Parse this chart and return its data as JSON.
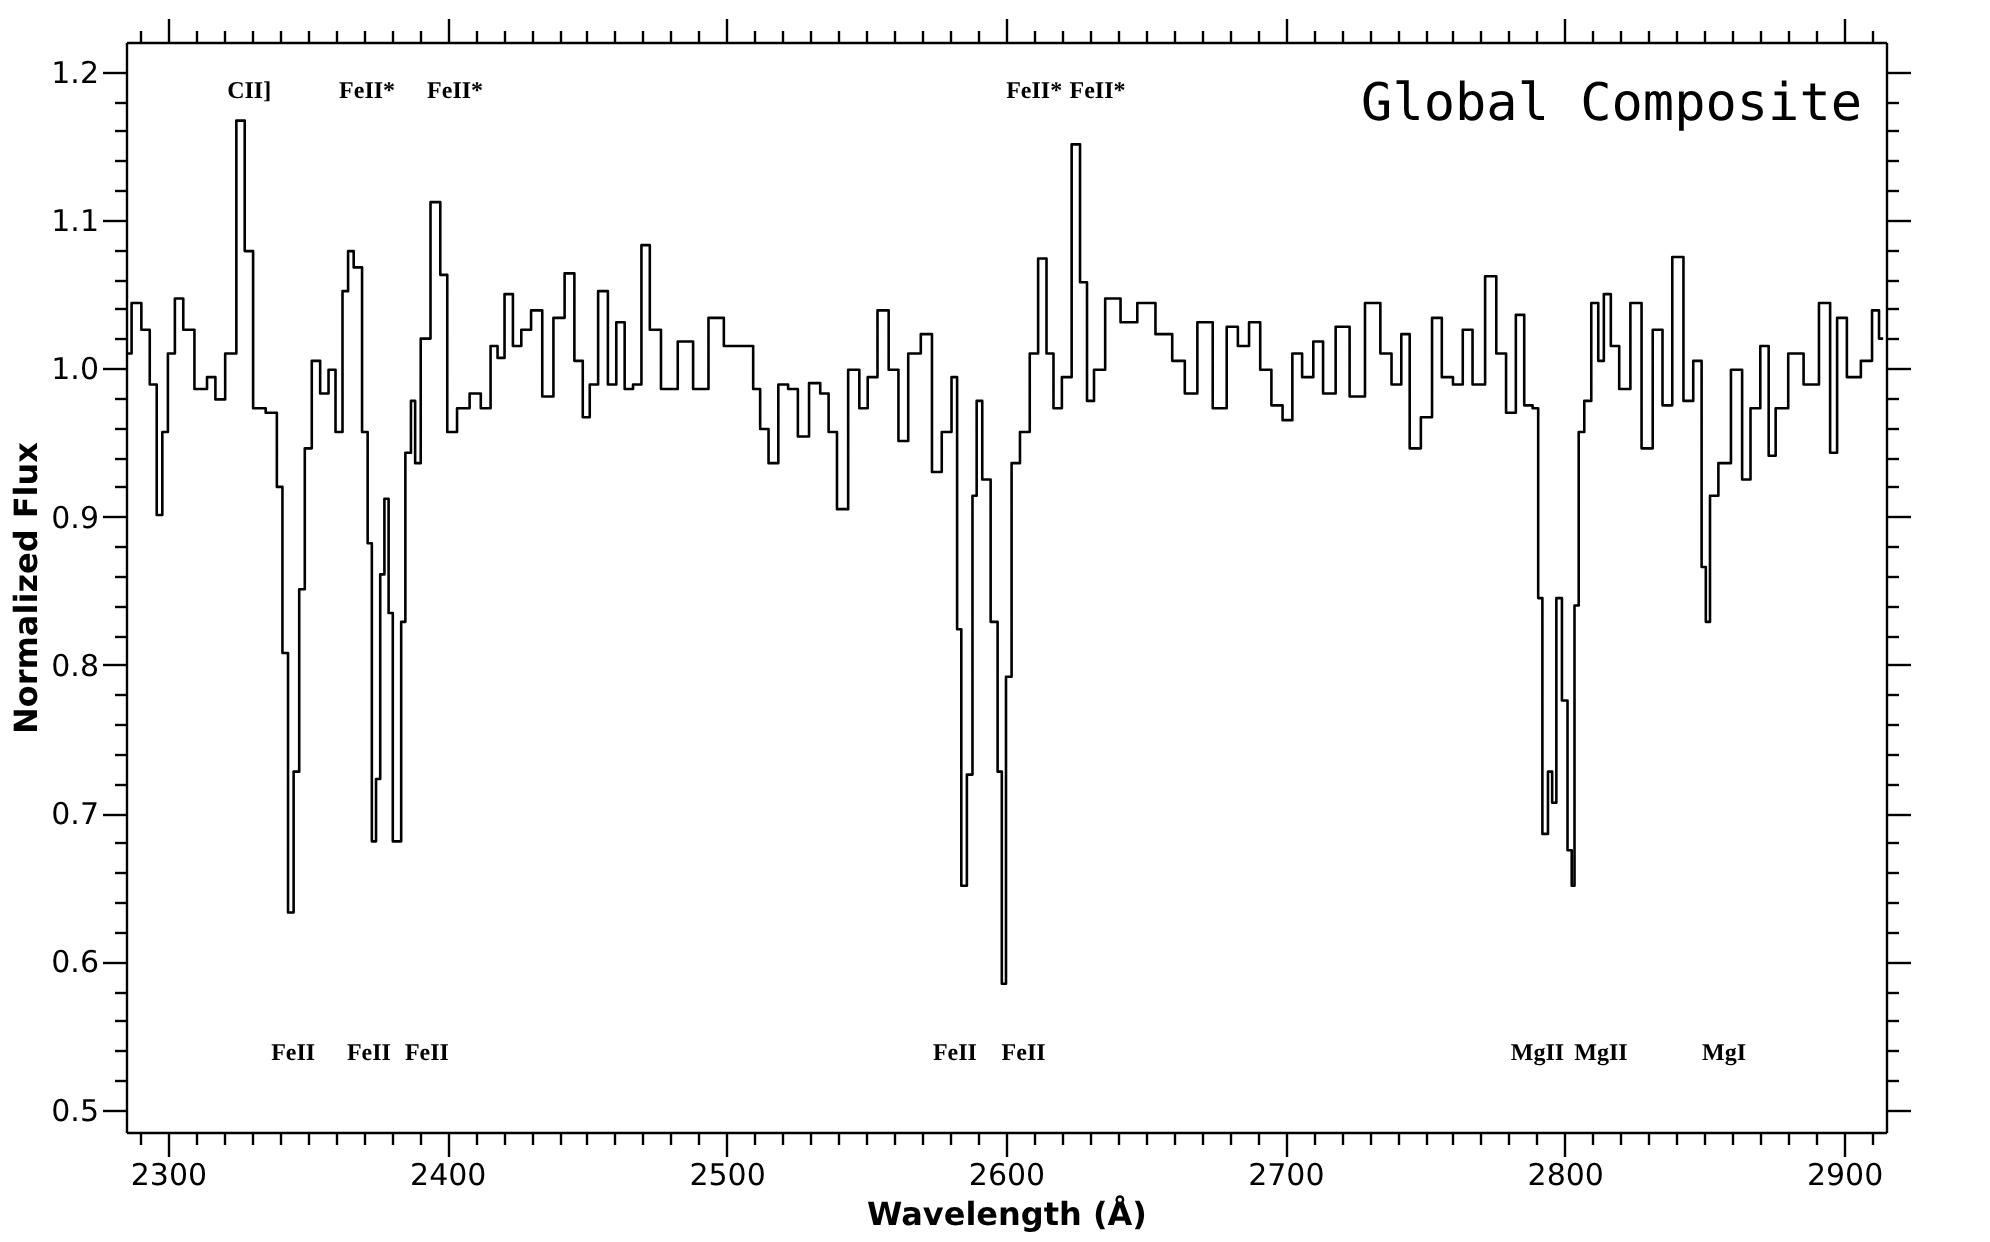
{
  "chart_data": {
    "type": "step",
    "title": "Global Composite",
    "xlabel": "Wavelength (Å)",
    "ylabel": "Normalized Flux",
    "xlim": [
      2285,
      2915
    ],
    "ylim": [
      0.485,
      1.22
    ],
    "xticks": [
      {
        "value": 2290,
        "label": null
      },
      2300,
      {
        "value": 2310,
        "label": null
      },
      {
        "value": 2320,
        "label": null
      },
      {
        "value": 2330,
        "label": null
      },
      {
        "value": 2340,
        "label": null
      },
      {
        "value": 2350,
        "label": null
      },
      {
        "value": 2360,
        "label": null
      },
      {
        "value": 2370,
        "label": null
      },
      {
        "value": 2380,
        "label": null
      },
      {
        "value": 2390,
        "label": null
      },
      2400,
      {
        "value": 2410,
        "label": null
      },
      {
        "value": 2420,
        "label": null
      },
      {
        "value": 2430,
        "label": null
      },
      {
        "value": 2440,
        "label": null
      },
      {
        "value": 2450,
        "label": null
      },
      {
        "value": 2460,
        "label": null
      },
      {
        "value": 2470,
        "label": null
      },
      {
        "value": 2480,
        "label": null
      },
      {
        "value": 2490,
        "label": null
      },
      2500,
      {
        "value": 2510,
        "label": null
      },
      {
        "value": 2520,
        "label": null
      },
      {
        "value": 2530,
        "label": null
      },
      {
        "value": 2540,
        "label": null
      },
      {
        "value": 2550,
        "label": null
      },
      {
        "value": 2560,
        "label": null
      },
      {
        "value": 2570,
        "label": null
      },
      {
        "value": 2580,
        "label": null
      },
      {
        "value": 2590,
        "label": null
      },
      2600,
      {
        "value": 2610,
        "label": null
      },
      {
        "value": 2620,
        "label": null
      },
      {
        "value": 2630,
        "label": null
      },
      {
        "value": 2640,
        "label": null
      },
      {
        "value": 2650,
        "label": null
      },
      {
        "value": 2660,
        "label": null
      },
      {
        "value": 2670,
        "label": null
      },
      {
        "value": 2680,
        "label": null
      },
      {
        "value": 2690,
        "label": null
      },
      2700,
      {
        "value": 2710,
        "label": null
      },
      {
        "value": 2720,
        "label": null
      },
      {
        "value": 2730,
        "label": null
      },
      {
        "value": 2740,
        "label": null
      },
      {
        "value": 2750,
        "label": null
      },
      {
        "value": 2760,
        "label": null
      },
      {
        "value": 2770,
        "label": null
      },
      {
        "value": 2780,
        "label": null
      },
      {
        "value": 2790,
        "label": null
      },
      2800,
      {
        "value": 2810,
        "label": null
      },
      {
        "value": 2820,
        "label": null
      },
      {
        "value": 2830,
        "label": null
      },
      {
        "value": 2840,
        "label": null
      },
      {
        "value": 2850,
        "label": null
      },
      {
        "value": 2860,
        "label": null
      },
      {
        "value": 2870,
        "label": null
      },
      {
        "value": 2880,
        "label": null
      },
      {
        "value": 2890,
        "label": null
      },
      2900,
      {
        "value": 2910,
        "label": null
      }
    ],
    "yticks": [
      0.5,
      {
        "value": 0.52,
        "label": null
      },
      {
        "value": 0.54,
        "label": null
      },
      {
        "value": 0.56,
        "label": null
      },
      {
        "value": 0.58,
        "label": null
      },
      0.6,
      {
        "value": 0.62,
        "label": null
      },
      {
        "value": 0.64,
        "label": null
      },
      {
        "value": 0.66,
        "label": null
      },
      {
        "value": 0.68,
        "label": null
      },
      0.7,
      {
        "value": 0.72,
        "label": null
      },
      {
        "value": 0.74,
        "label": null
      },
      {
        "value": 0.76,
        "label": null
      },
      {
        "value": 0.78,
        "label": null
      },
      0.8,
      {
        "value": 0.82,
        "label": null
      },
      {
        "value": 0.84,
        "label": null
      },
      {
        "value": 0.86,
        "label": null
      },
      {
        "value": 0.88,
        "label": null
      },
      0.9,
      {
        "value": 0.92,
        "label": null
      },
      {
        "value": 0.94,
        "label": null
      },
      {
        "value": 0.96,
        "label": null
      },
      {
        "value": 0.98,
        "label": null
      },
      {
        "value": 1.0,
        "label": "1.0"
      },
      {
        "value": 1.02,
        "label": null
      },
      {
        "value": 1.04,
        "label": null
      },
      {
        "value": 1.06,
        "label": null
      },
      {
        "value": 1.08,
        "label": null
      },
      1.1,
      {
        "value": 1.12,
        "label": null
      },
      {
        "value": 1.14,
        "label": null
      },
      {
        "value": 1.16,
        "label": null
      },
      {
        "value": 1.18,
        "label": null
      },
      1.2
    ],
    "grid": false,
    "series": [
      {
        "color": "#000000",
        "x": [
          2285,
          2289,
          2292,
          2295,
          2297,
          2299,
          2301,
          2304,
          2307,
          2312,
          2316,
          2318,
          2323,
          2326,
          2329,
          2332,
          2338,
          2340,
          2342,
          2344,
          2346,
          2348,
          2350,
          2353,
          2356,
          2359,
          2361,
          2364,
          2365,
          2368,
          2371,
          2372,
          2374,
          2375,
          2377,
          2378,
          2380,
          2381,
          2383,
          2384,
          2386,
          2388,
          2389,
          2392,
          2396,
          2399,
          2401,
          2406,
          2410,
          2414,
          2417,
          2419,
          2422,
          2425,
          2428,
          2432,
          2436,
          2440,
          2444,
          2447,
          2450,
          2452,
          2456,
          2459,
          2462,
          2465,
          2468,
          2471,
          2474,
          2479,
          2486,
          2490,
          2497,
          2501,
          2508,
          2511,
          2513,
          2517,
          2520,
          2524,
          2527,
          2532,
          2535,
          2538,
          2541,
          2546,
          2549,
          2552,
          2556,
          2560,
          2563,
          2567,
          2572,
          2575,
          2579,
          2582,
          2583,
          2585,
          2587,
          2589,
          2590,
          2593,
          2596,
          2598,
          2599,
          2601,
          2603,
          2607,
          2610,
          2613,
          2616,
          2618,
          2622,
          2625,
          2628,
          2630,
          2633,
          2638,
          2644,
          2650,
          2657,
          2662,
          2666,
          2671,
          2677,
          2681,
          2685,
          2689,
          2693,
          2697,
          2701,
          2704,
          2708,
          2712,
          2715,
          2721,
          2725,
          2732,
          2736,
          2740,
          2743,
          2746,
          2751,
          2754,
          2758,
          2762,
          2765,
          2769,
          2774,
          2777,
          2781,
          2784,
          2787,
          2790,
          2791,
          2793,
          2795,
          2796,
          2798,
          2800,
          2802,
          2803,
          2804,
          2806,
          2808,
          2811,
          2813,
          2815,
          2818,
          2821,
          2826,
          2829,
          2834,
          2836,
          2841,
          2844,
          2848,
          2850,
          2851,
          2853,
          2857,
          2862,
          2865,
          2868,
          2872,
          2874,
          2877,
          2883,
          2888,
          2894,
          2896,
          2899,
          2903,
          2909,
          2911,
          2914
        ],
        "values": [
          1.01,
          1.044,
          1.026,
          0.989,
          0.901,
          0.957,
          1.01,
          1.047,
          1.026,
          0.986,
          0.994,
          0.979,
          1.01,
          1.167,
          1.079,
          0.973,
          0.97,
          0.92,
          0.808,
          0.633,
          0.728,
          0.851,
          0.946,
          1.005,
          0.983,
          0.999,
          0.957,
          1.052,
          1.079,
          1.068,
          0.957,
          0.882,
          0.681,
          0.723,
          0.861,
          0.912,
          0.835,
          0.681,
          0.681,
          0.829,
          0.943,
          0.978,
          0.936,
          1.02,
          1.112,
          1.063,
          0.957,
          0.973,
          0.983,
          0.973,
          1.015,
          1.007,
          1.05,
          1.015,
          1.026,
          1.039,
          0.981,
          1.034,
          1.064,
          1.005,
          0.967,
          0.989,
          1.052,
          0.989,
          1.031,
          0.986,
          0.989,
          1.083,
          1.026,
          0.986,
          1.018,
          0.986,
          1.034,
          1.015,
          1.015,
          0.986,
          0.959,
          0.936,
          0.989,
          0.986,
          0.954,
          0.99,
          0.983,
          0.957,
          0.905,
          0.999,
          0.973,
          0.994,
          1.039,
          0.999,
          0.951,
          1.01,
          1.023,
          0.93,
          0.957,
          0.994,
          0.824,
          0.651,
          0.726,
          0.914,
          0.978,
          0.925,
          0.829,
          0.728,
          0.585,
          0.792,
          0.936,
          0.957,
          1.01,
          1.074,
          1.01,
          0.973,
          0.994,
          1.151,
          1.058,
          0.978,
          0.999,
          1.047,
          1.031,
          1.044,
          1.023,
          1.005,
          0.983,
          1.031,
          0.973,
          1.028,
          1.015,
          1.031,
          0.999,
          0.975,
          0.965,
          1.01,
          0.994,
          1.018,
          0.983,
          1.028,
          0.981,
          1.044,
          1.01,
          0.989,
          1.023,
          0.946,
          0.967,
          1.034,
          0.994,
          0.989,
          1.026,
          0.989,
          1.062,
          1.01,
          0.97,
          1.036,
          0.975,
          0.973,
          0.845,
          0.686,
          0.728,
          0.707,
          0.845,
          0.776,
          0.675,
          0.651,
          0.84,
          0.957,
          0.978,
          1.044,
          1.005,
          1.05,
          1.015,
          0.986,
          1.044,
          0.946,
          1.026,
          0.975,
          1.075,
          0.978,
          1.005,
          0.866,
          0.829,
          0.914,
          0.936,
          0.999,
          0.925,
          0.973,
          1.015,
          0.941,
          0.973,
          1.01,
          0.989,
          1.044,
          0.943,
          1.034,
          0.994,
          1.005,
          1.039,
          1.02
        ]
      }
    ],
    "annotations": [
      "CII]",
      "FeII*",
      "FeII*",
      "FeII*",
      "FeII*",
      "FeII",
      "FeII",
      "FeII",
      "FeII",
      "FeII",
      "MgII",
      "MgII",
      "MgI"
    ]
  }
}
